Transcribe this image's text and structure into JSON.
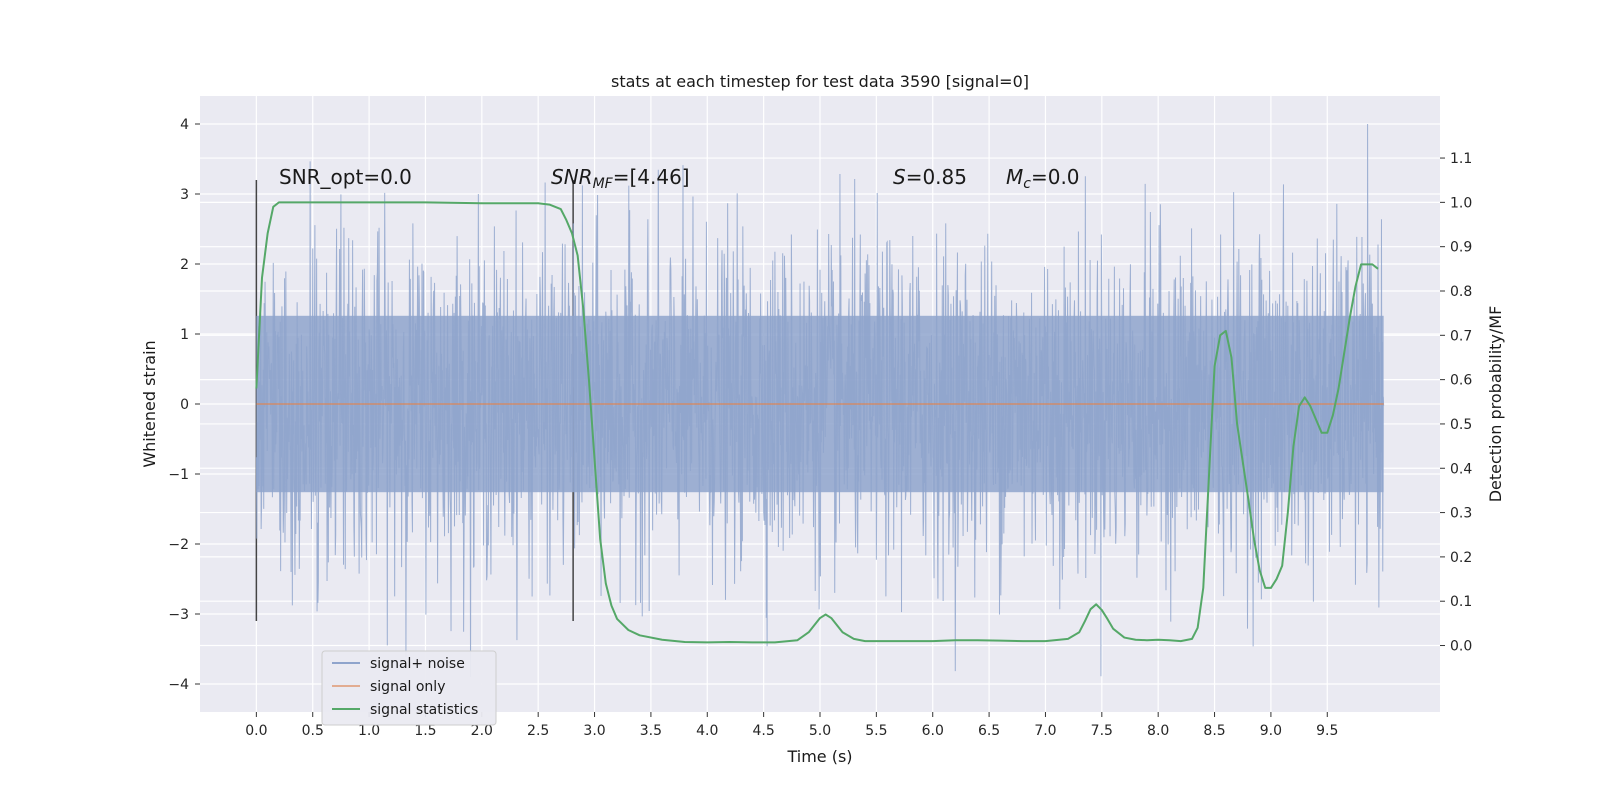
{
  "chart_data": {
    "type": "line",
    "title": "stats at each timestep for test data 3590 [signal=0]",
    "xlabel": "Time (s)",
    "ylabel": "Whitened strain",
    "y2label": "Detection probability/MF",
    "xlim": [
      -0.5,
      10.5
    ],
    "ylim": [
      -4.4,
      4.4
    ],
    "y2lim": [
      -0.15,
      1.24
    ],
    "x_ticks": [
      "0.0",
      "0.5",
      "1.0",
      "1.5",
      "2.0",
      "2.5",
      "3.0",
      "3.5",
      "4.0",
      "4.5",
      "5.0",
      "5.5",
      "6.0",
      "6.5",
      "7.0",
      "7.5",
      "8.0",
      "8.5",
      "9.0",
      "9.5"
    ],
    "y_ticks": [
      "4",
      "3",
      "2",
      "1",
      "0",
      "−1",
      "−2",
      "−3",
      "−4"
    ],
    "y2_ticks": [
      "1.1",
      "1.0",
      "0.9",
      "0.8",
      "0.7",
      "0.6",
      "0.5",
      "0.4",
      "0.3",
      "0.2",
      "0.1",
      "0.0"
    ],
    "grid": true,
    "legend_position": "lower-left",
    "annotations": {
      "snr_opt": "SNR_opt=0.0",
      "snr_mf_sym": "SNR",
      "snr_mf_sub": "MF",
      "snr_mf_val": "=[4.46]",
      "s_sym": "S",
      "s_val": "=0.85",
      "mc_sym": "M",
      "mc_sub": "c",
      "mc_val": "=0.0"
    },
    "vertical_markers": [
      0.0,
      2.81
    ],
    "series": [
      {
        "name": "signal+ noise",
        "color": "#8fa4cc",
        "x_range": [
          0,
          10
        ],
        "envelope_abs": 3.0,
        "note": "dense whitened noise trace"
      },
      {
        "name": "signal only",
        "color": "#dd8452",
        "x": [
          0,
          10
        ],
        "y": [
          0.0,
          0.0
        ]
      },
      {
        "name": "signal statistics",
        "color": "#55a868",
        "axis": "right",
        "x": [
          0.0,
          0.05,
          0.1,
          0.15,
          0.2,
          0.3,
          0.5,
          1.0,
          1.5,
          2.0,
          2.5,
          2.6,
          2.7,
          2.75,
          2.8,
          2.85,
          2.9,
          2.95,
          3.0,
          3.05,
          3.1,
          3.15,
          3.2,
          3.3,
          3.4,
          3.6,
          3.8,
          4.0,
          4.2,
          4.4,
          4.6,
          4.8,
          4.9,
          5.0,
          5.05,
          5.1,
          5.2,
          5.3,
          5.4,
          5.6,
          5.8,
          6.0,
          6.2,
          6.4,
          6.6,
          6.8,
          7.0,
          7.2,
          7.3,
          7.35,
          7.4,
          7.45,
          7.5,
          7.55,
          7.6,
          7.7,
          7.8,
          7.9,
          8.0,
          8.1,
          8.2,
          8.3,
          8.35,
          8.4,
          8.45,
          8.5,
          8.55,
          8.6,
          8.65,
          8.7,
          8.8,
          8.85,
          8.9,
          8.95,
          9.0,
          9.05,
          9.1,
          9.15,
          9.2,
          9.25,
          9.3,
          9.35,
          9.4,
          9.45,
          9.5,
          9.55,
          9.6,
          9.65,
          9.7,
          9.75,
          9.8,
          9.85,
          9.9,
          9.95
        ],
        "y": [
          0.58,
          0.83,
          0.93,
          0.99,
          1.0,
          1.0,
          1.0,
          1.0,
          1.0,
          0.998,
          0.998,
          0.995,
          0.985,
          0.96,
          0.93,
          0.88,
          0.76,
          0.6,
          0.42,
          0.24,
          0.14,
          0.09,
          0.06,
          0.035,
          0.023,
          0.013,
          0.008,
          0.007,
          0.008,
          0.007,
          0.007,
          0.012,
          0.03,
          0.062,
          0.07,
          0.062,
          0.03,
          0.015,
          0.01,
          0.01,
          0.01,
          0.01,
          0.012,
          0.012,
          0.011,
          0.01,
          0.01,
          0.015,
          0.03,
          0.055,
          0.082,
          0.093,
          0.08,
          0.06,
          0.038,
          0.018,
          0.013,
          0.012,
          0.013,
          0.012,
          0.01,
          0.015,
          0.04,
          0.13,
          0.38,
          0.63,
          0.7,
          0.71,
          0.65,
          0.5,
          0.33,
          0.24,
          0.17,
          0.13,
          0.13,
          0.15,
          0.18,
          0.3,
          0.45,
          0.54,
          0.56,
          0.54,
          0.51,
          0.48,
          0.48,
          0.52,
          0.58,
          0.66,
          0.74,
          0.81,
          0.86,
          0.86,
          0.86,
          0.85
        ]
      }
    ]
  }
}
